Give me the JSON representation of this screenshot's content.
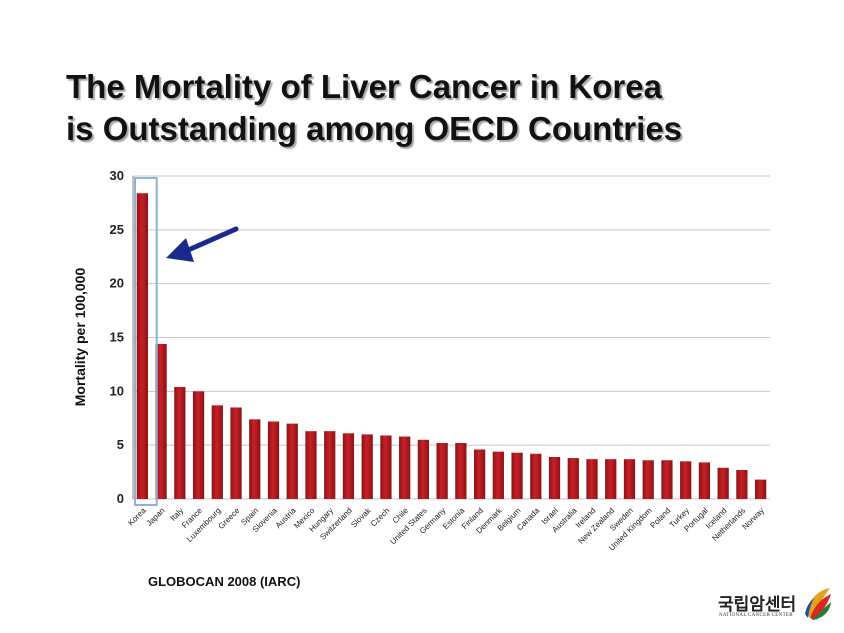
{
  "title": {
    "line1": "The Mortality of Liver Cancer in Korea",
    "line2": "is Outstanding among OECD Countries"
  },
  "source": "GLOBOCAN  2008 (IARC)",
  "logo": {
    "name_ko": "국립암센터",
    "name_en": "NATIONAL CANCER CENTER"
  },
  "colors": {
    "bar": "#c62128",
    "bar_dark": "#8e1116",
    "highlight_box": "#8fb1d4",
    "arrow": "#1a2a8c",
    "grid": "#c8c8c8"
  },
  "chart_data": {
    "type": "bar",
    "ylabel": "Mortality per 100,000",
    "xlabel": "",
    "ylim": [
      0,
      30
    ],
    "yticks": [
      0,
      5,
      10,
      15,
      20,
      25,
      30
    ],
    "grid": true,
    "highlight_category": "Korea",
    "categories": [
      "Korea",
      "Japan",
      "Italy",
      "France",
      "Luxembourg",
      "Greece",
      "Spain",
      "Slovenia",
      "Austria",
      "Mexico",
      "Hungary",
      "Switzerland",
      "Slovak",
      "Czech",
      "Chile",
      "United States",
      "Germany",
      "Estonia",
      "Finland",
      "Denmark",
      "Belgium",
      "Canada",
      "Israel",
      "Australia",
      "Ireland",
      "New Zealand",
      "Sweden",
      "United Kingdom",
      "Poland",
      "Turkey",
      "Portugal",
      "Iceland",
      "Netherlands",
      "Norway"
    ],
    "values": [
      28.4,
      14.4,
      10.4,
      10.0,
      8.7,
      8.5,
      7.4,
      7.2,
      7.0,
      6.3,
      6.3,
      6.1,
      6.0,
      5.9,
      5.8,
      5.5,
      5.2,
      5.2,
      4.6,
      4.4,
      4.3,
      4.2,
      3.9,
      3.8,
      3.7,
      3.7,
      3.7,
      3.6,
      3.6,
      3.5,
      3.4,
      2.9,
      2.7,
      1.8
    ]
  }
}
